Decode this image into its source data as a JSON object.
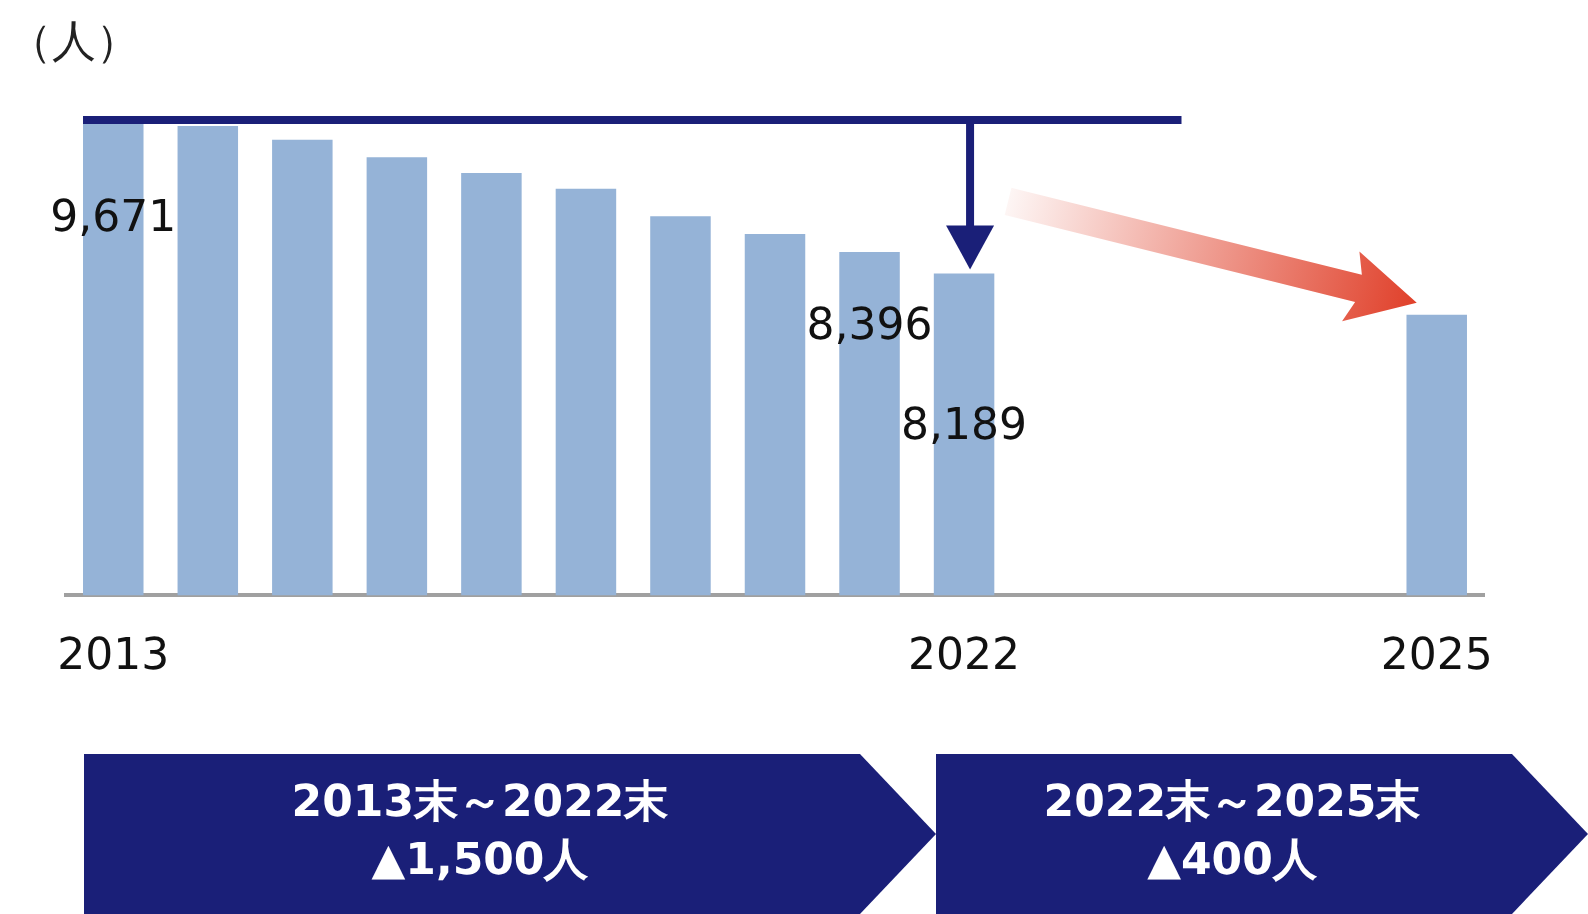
{
  "chart_data": {
    "type": "bar",
    "ylabel": "（人）",
    "categories": [
      "2013",
      null,
      null,
      null,
      null,
      null,
      null,
      null,
      null,
      "2022",
      null,
      null,
      null,
      null,
      "2025"
    ],
    "values": [
      9671,
      9614,
      9481,
      9310,
      9158,
      9006,
      8740,
      8569,
      8396,
      8189,
      null,
      null,
      null,
      null,
      7789
    ],
    "value_labels": [
      "9,671",
      null,
      null,
      null,
      null,
      null,
      null,
      null,
      "8,396",
      "8,189",
      null,
      null,
      null,
      null,
      null
    ],
    "color": "#95b3d7",
    "ylim": [
      5080,
      9671
    ],
    "tick_labels": "x",
    "grid": false,
    "legend": false,
    "annotations": [
      "2013末～2022末\n▲1,500人",
      "2022末～2025末\n▲400人"
    ]
  }
}
